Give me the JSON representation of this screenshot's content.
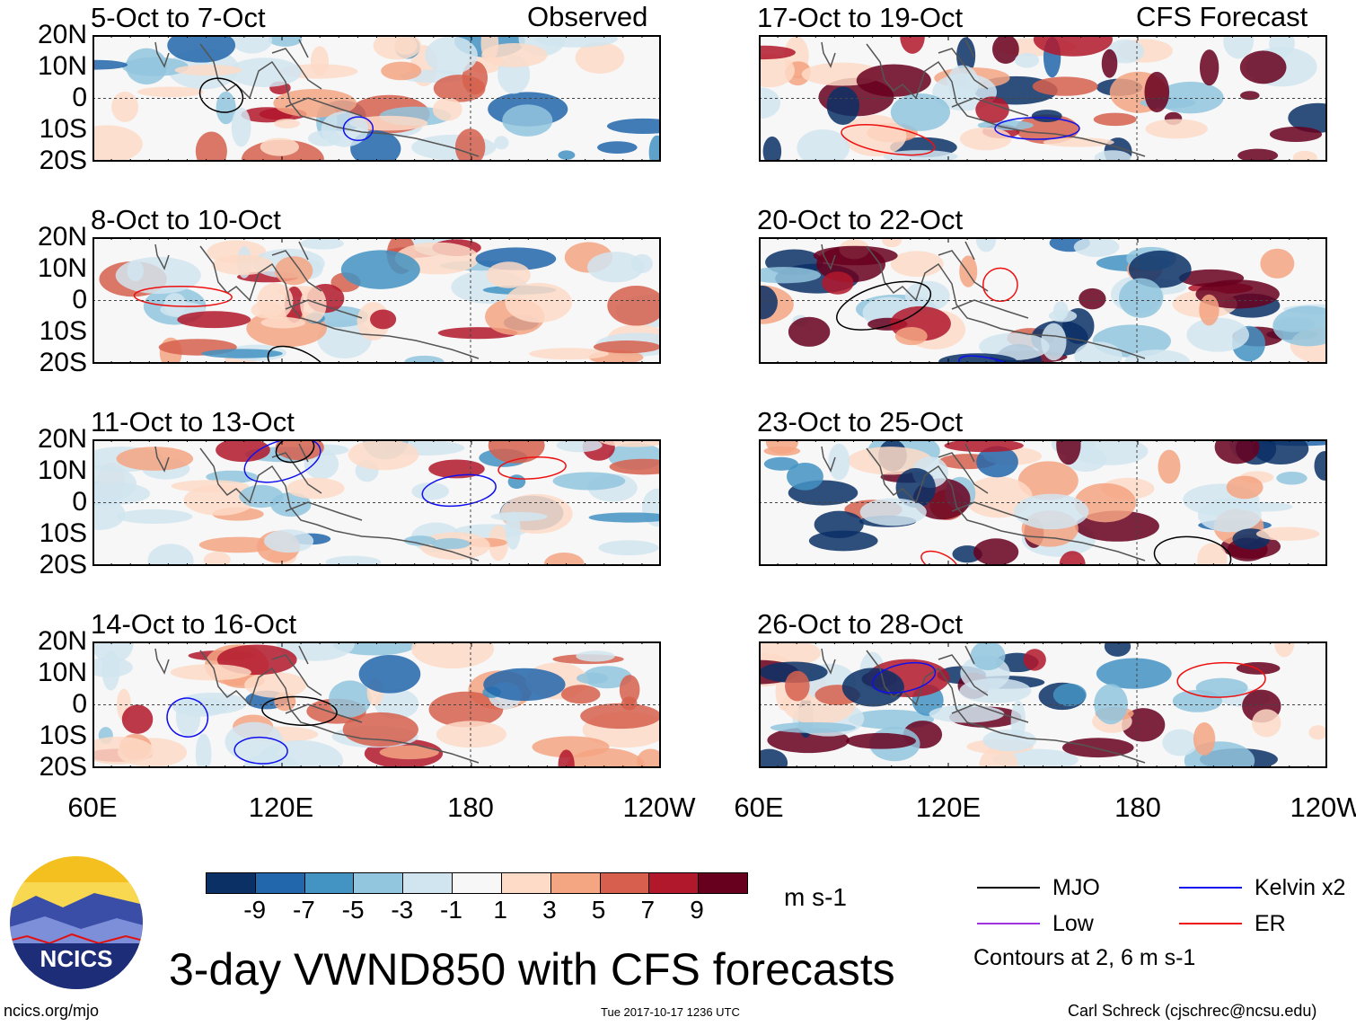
{
  "title": "3-day VWND850 with CFS forecasts",
  "columns": {
    "left_label": "Observed",
    "right_label": "CFS Forecast"
  },
  "panels": {
    "left": [
      "5-Oct to 7-Oct",
      "8-Oct to 10-Oct",
      "11-Oct to 13-Oct",
      "14-Oct to 16-Oct"
    ],
    "right": [
      "17-Oct to 19-Oct",
      "20-Oct to 22-Oct",
      "23-Oct to 25-Oct",
      "26-Oct to 28-Oct"
    ]
  },
  "lat_labels": [
    "20N",
    "10N",
    "0",
    "10S",
    "20S"
  ],
  "lon_labels": [
    "60E",
    "120E",
    "180",
    "120W"
  ],
  "colorbar": {
    "ticks": [
      "-9",
      "-7",
      "-5",
      "-3",
      "-1",
      "1",
      "3",
      "5",
      "7",
      "9"
    ],
    "units": "m s-1",
    "colors": [
      "#0a3066",
      "#2266ac",
      "#4393c3",
      "#92c5de",
      "#d1e5f0",
      "#f7f7f7",
      "#fddbc7",
      "#f4a582",
      "#d6604d",
      "#b2182b",
      "#67001f"
    ]
  },
  "legend": {
    "items": [
      {
        "label": "MJO",
        "color": "#000000"
      },
      {
        "label": "Low",
        "color": "#a033e0"
      },
      {
        "label": "Kelvin x2",
        "color": "#1010ee"
      },
      {
        "label": "ER",
        "color": "#ee1010"
      }
    ],
    "note": "Contours at 2, 6 m s-1"
  },
  "logo": {
    "text": "NCICS"
  },
  "footer": {
    "url": "ncics.org/mjo",
    "timestamp": "Tue 2017-10-17 1236 UTC",
    "credit": "Carl Schreck (cjschrec@ncsu.edu)"
  }
}
